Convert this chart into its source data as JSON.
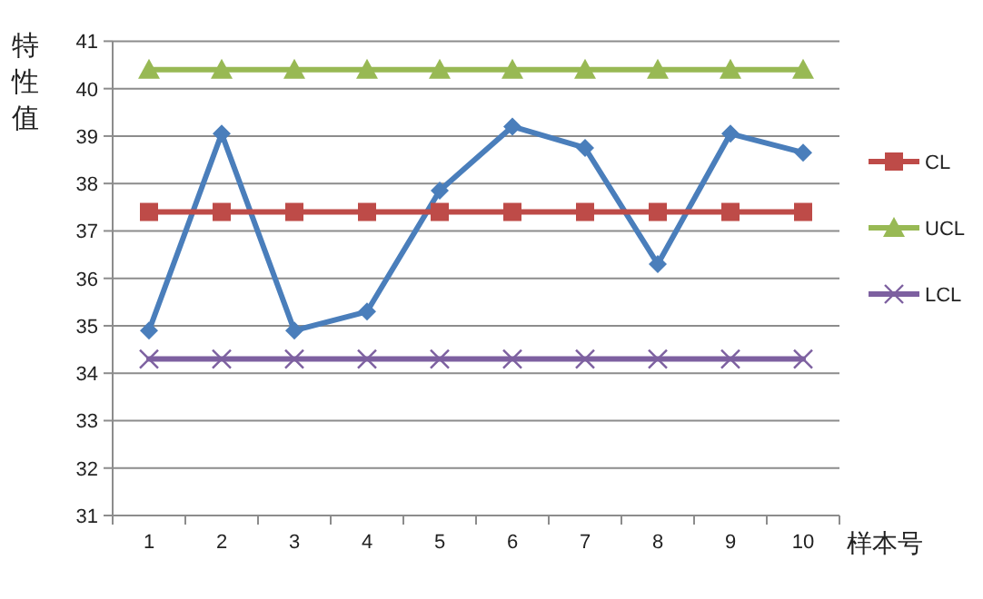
{
  "chart_data": {
    "type": "line",
    "ylabel": "特性值",
    "xlabel": "样本号",
    "categories": [
      "1",
      "2",
      "3",
      "4",
      "5",
      "6",
      "7",
      "8",
      "9",
      "10"
    ],
    "series": [
      {
        "color": "#4a7ebb",
        "marker": "diamond",
        "values": [
          34.9,
          39.05,
          34.9,
          35.3,
          37.85,
          39.2,
          38.75,
          36.3,
          39.05,
          38.65
        ]
      },
      {
        "name": "CL",
        "color": "#be4b48",
        "marker": "square",
        "values": [
          37.4,
          37.4,
          37.4,
          37.4,
          37.4,
          37.4,
          37.4,
          37.4,
          37.4,
          37.4
        ]
      },
      {
        "name": "UCL",
        "color": "#98b954",
        "marker": "triangle",
        "values": [
          40.4,
          40.4,
          40.4,
          40.4,
          40.4,
          40.4,
          40.4,
          40.4,
          40.4,
          40.4
        ]
      },
      {
        "name": "LCL",
        "color": "#7d60a0",
        "marker": "cross",
        "values": [
          34.3,
          34.3,
          34.3,
          34.3,
          34.3,
          34.3,
          34.3,
          34.3,
          34.3,
          34.3
        ]
      }
    ],
    "ylim": [
      31,
      41
    ],
    "yticks": [
      31,
      32,
      33,
      34,
      35,
      36,
      37,
      38,
      39,
      40,
      41
    ],
    "grid": "y",
    "legend": "right"
  }
}
